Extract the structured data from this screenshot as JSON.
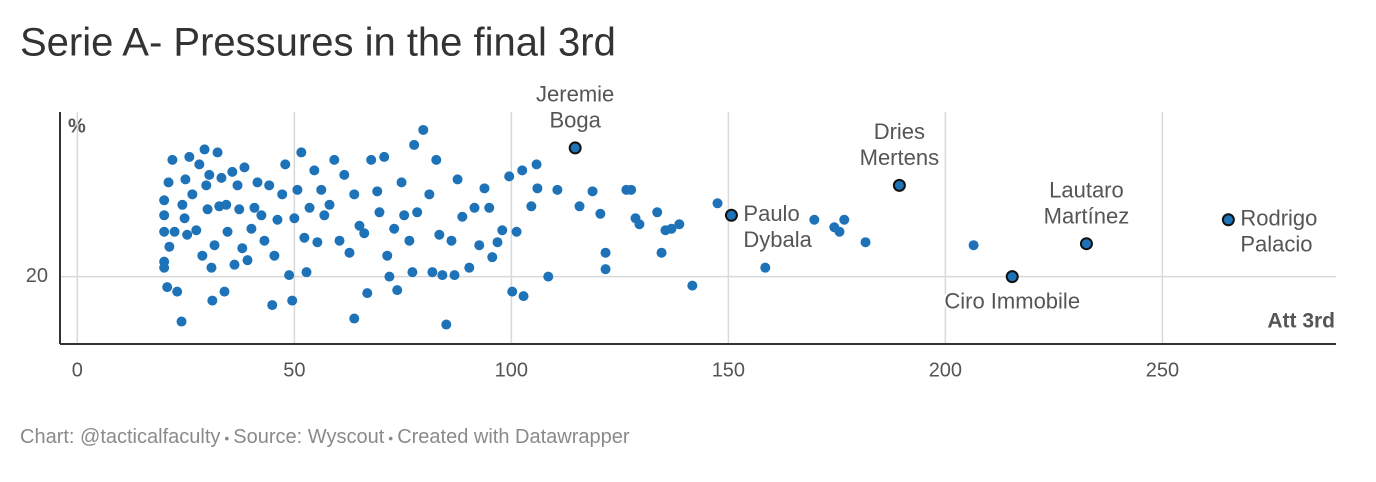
{
  "chart_data": {
    "type": "scatter",
    "title": "Serie A- Pressures in the final 3rd",
    "y_label": "%",
    "x_label": "Att 3rd",
    "footer": [
      "Chart: @tacticalfaculty",
      "Source: Wyscout",
      "Created with Datawrapper"
    ],
    "color": "#1d72b8",
    "xlim": [
      -4,
      290
    ],
    "xticks": [
      0,
      50,
      100,
      150,
      200,
      250
    ],
    "ylim": [
      15.5,
      31
    ],
    "yticks": [
      20
    ],
    "grid": true,
    "x": [
      20.0,
      20.0,
      20.0,
      20,
      20,
      20.7,
      21.0,
      21.2,
      21.9,
      22.4,
      23.0,
      24.0,
      24.2,
      24.7,
      24.9,
      25.3,
      25.8,
      26.5,
      27.4,
      28.1,
      28.8,
      29.3,
      29.7,
      30.0,
      30.4,
      30.9,
      31.1,
      31.6,
      32.3,
      32.7,
      33.2,
      33.9,
      34.3,
      34.6,
      35.7,
      36.2,
      36.9,
      37.3,
      38.0,
      38.5,
      39.2,
      40.1,
      40.8,
      41.5,
      42.4,
      43.1,
      44.2,
      44.9,
      45.4,
      46.1,
      47.2,
      47.9,
      48.8,
      49.5,
      50.0,
      50.7,
      51.6,
      52.3,
      52.8,
      53.5,
      54.6,
      55.3,
      56.2,
      56.9,
      58.1,
      59.2,
      60.4,
      61.5,
      62.7,
      63.8,
      63.8,
      65.0,
      66.1,
      66.8,
      67.7,
      69.1,
      69.6,
      70.7,
      71.4,
      71.9,
      73.0,
      73.7,
      74.7,
      75.3,
      76.5,
      77.2,
      77.6,
      78.3,
      79.7,
      81.1,
      81.8,
      82.7,
      83.4,
      84.1,
      85.0,
      86.2,
      86.9,
      87.6,
      88.7,
      90.3,
      91.5,
      92.6,
      93.8,
      94.9,
      95.6,
      96.8,
      97.9,
      99.5,
      100.2,
      101.2,
      102.5,
      102.8,
      104.6,
      105.8,
      106.0,
      108.5,
      110.6,
      115.7,
      118.7,
      120.5,
      121.7,
      121.7,
      126.5,
      127.6,
      128.6,
      129.5,
      133.6,
      134.6,
      135.5,
      136.9,
      138.7,
      141.7,
      147.5,
      158.5,
      169.8,
      174.4,
      175.6,
      176.7,
      181.6,
      206.5
    ],
    "values": [
      25.1,
      24.1,
      23.0,
      21.0,
      20.6,
      19.3,
      26.3,
      22.0,
      27.8,
      23.0,
      19.0,
      17.0,
      24.8,
      23.9,
      26.5,
      22.8,
      28.0,
      25.5,
      23.1,
      27.5,
      21.4,
      28.5,
      26.1,
      24.5,
      26.8,
      20.6,
      18.4,
      22.1,
      28.3,
      24.7,
      26.6,
      19.0,
      24.8,
      23.0,
      27.0,
      20.8,
      26.1,
      24.5,
      21.9,
      27.3,
      21.1,
      23.2,
      24.6,
      26.3,
      24.1,
      22.4,
      26.1,
      18.1,
      21.4,
      23.8,
      25.5,
      27.5,
      20.1,
      18.4,
      23.9,
      25.8,
      28.3,
      22.6,
      20.3,
      24.6,
      27.1,
      22.3,
      25.8,
      24.1,
      24.8,
      27.8,
      22.4,
      26.8,
      21.6,
      25.5,
      17.2,
      23.4,
      22.9,
      18.9,
      27.8,
      25.7,
      24.3,
      28.0,
      21.4,
      20.0,
      23.2,
      19.1,
      26.3,
      24.1,
      22.4,
      20.3,
      28.8,
      24.3,
      29.8,
      25.5,
      20.3,
      27.8,
      22.8,
      20.1,
      16.8,
      22.4,
      20.1,
      26.5,
      24.0,
      20.6,
      24.6,
      22.1,
      25.9,
      24.6,
      21.3,
      22.3,
      23.1,
      26.7,
      19.0,
      23.0,
      27.1,
      18.7,
      24.7,
      27.5,
      25.9,
      20.0,
      25.8,
      24.7,
      25.7,
      24.2,
      21.6,
      20.5,
      25.8,
      25.8,
      23.9,
      23.5,
      24.3,
      21.6,
      23.1,
      23.2,
      23.5,
      19.4,
      24.9,
      20.6,
      23.8,
      23.3,
      23.0,
      23.8,
      22.3,
      22.1
    ],
    "highlights": [
      {
        "label": [
          "Jeremie",
          "Boga"
        ],
        "x": 114.7,
        "y": 28.6,
        "label_position": "top"
      },
      {
        "label": [
          "Dries",
          "Mertens"
        ],
        "x": 189.4,
        "y": 26.1,
        "label_position": "top"
      },
      {
        "label": [
          "Paulo",
          "Dybala"
        ],
        "x": 150.7,
        "y": 24.1,
        "label_position": "right"
      },
      {
        "label": [
          "Lautaro",
          "Martínez"
        ],
        "x": 232.5,
        "y": 22.2,
        "label_position": "top"
      },
      {
        "label": [
          "Rodrigo",
          "Palacio"
        ],
        "x": 265.2,
        "y": 23.8,
        "label_position": "right"
      },
      {
        "label": [
          "Ciro Immobile"
        ],
        "x": 215.4,
        "y": 20.0,
        "label_position": "bottom"
      }
    ]
  }
}
